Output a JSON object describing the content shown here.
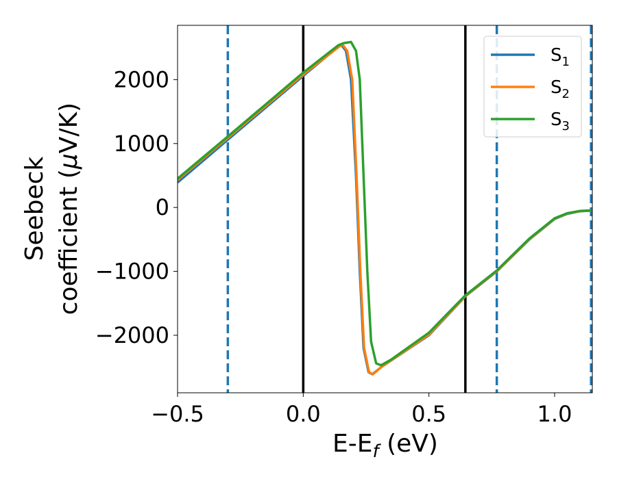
{
  "chart_data": {
    "type": "line",
    "xlabel": "E-E",
    "xlabel_sub": "f",
    "xlabel_unit": " (eV)",
    "ylabel_line1": "Seebeck",
    "ylabel_line2": "coefficient  (",
    "ylabel_mu": "μ",
    "ylabel_unit": "V/K)",
    "xlim": [
      -0.5,
      1.15
    ],
    "ylim": [
      -2900,
      2850
    ],
    "xticks": [
      -0.5,
      0.0,
      0.5,
      1.0
    ],
    "xtick_labels": [
      "−0.5",
      "0.0",
      "0.5",
      "1.0"
    ],
    "yticks": [
      -2000,
      -1000,
      0,
      1000,
      2000
    ],
    "ytick_labels": [
      "−2000",
      "−1000",
      "0",
      "1000",
      "2000"
    ],
    "grid": false,
    "legend_position": "top-right",
    "vlines_solid": [
      0.0,
      0.645
    ],
    "vlines_dashed": [
      -0.3,
      0.77,
      1.145
    ],
    "vline_solid_color": "#000000",
    "vline_dashed_color": "#1f77b4",
    "series": [
      {
        "name": "S",
        "sub": "1",
        "color": "#1f77b4",
        "points": [
          [
            -0.5,
            390
          ],
          [
            -0.3,
            1060
          ],
          [
            0.0,
            2060
          ],
          [
            0.15,
            2550
          ],
          [
            0.17,
            2450
          ],
          [
            0.19,
            2000
          ],
          [
            0.21,
            500
          ],
          [
            0.225,
            -1000
          ],
          [
            0.24,
            -2200
          ],
          [
            0.26,
            -2580
          ],
          [
            0.275,
            -2610
          ],
          [
            0.31,
            -2500
          ],
          [
            0.5,
            -2000
          ],
          [
            0.645,
            -1390
          ],
          [
            0.77,
            -1000
          ],
          [
            0.9,
            -500
          ],
          [
            1.0,
            -180
          ],
          [
            1.05,
            -100
          ],
          [
            1.1,
            -60
          ],
          [
            1.15,
            -50
          ]
        ]
      },
      {
        "name": "S",
        "sub": "2",
        "color": "#ff7f0e",
        "points": [
          [
            -0.5,
            430
          ],
          [
            -0.3,
            1090
          ],
          [
            0.0,
            2080
          ],
          [
            0.155,
            2555
          ],
          [
            0.175,
            2450
          ],
          [
            0.195,
            2000
          ],
          [
            0.212,
            500
          ],
          [
            0.227,
            -1000
          ],
          [
            0.242,
            -2200
          ],
          [
            0.262,
            -2580
          ],
          [
            0.277,
            -2610
          ],
          [
            0.31,
            -2500
          ],
          [
            0.5,
            -1990
          ],
          [
            0.645,
            -1385
          ],
          [
            0.77,
            -995
          ],
          [
            0.9,
            -495
          ],
          [
            1.0,
            -175
          ],
          [
            1.05,
            -95
          ],
          [
            1.1,
            -58
          ],
          [
            1.15,
            -48
          ]
        ]
      },
      {
        "name": "S",
        "sub": "3",
        "color": "#2ca02c",
        "points": [
          [
            -0.5,
            450
          ],
          [
            -0.3,
            1110
          ],
          [
            0.0,
            2110
          ],
          [
            0.14,
            2540
          ],
          [
            0.16,
            2570
          ],
          [
            0.19,
            2590
          ],
          [
            0.21,
            2450
          ],
          [
            0.225,
            2000
          ],
          [
            0.24,
            500
          ],
          [
            0.255,
            -1000
          ],
          [
            0.27,
            -2100
          ],
          [
            0.29,
            -2440
          ],
          [
            0.31,
            -2470
          ],
          [
            0.35,
            -2380
          ],
          [
            0.5,
            -1960
          ],
          [
            0.645,
            -1375
          ],
          [
            0.77,
            -985
          ],
          [
            0.9,
            -485
          ],
          [
            1.0,
            -170
          ],
          [
            1.05,
            -90
          ],
          [
            1.1,
            -55
          ],
          [
            1.15,
            -45
          ]
        ]
      }
    ]
  }
}
